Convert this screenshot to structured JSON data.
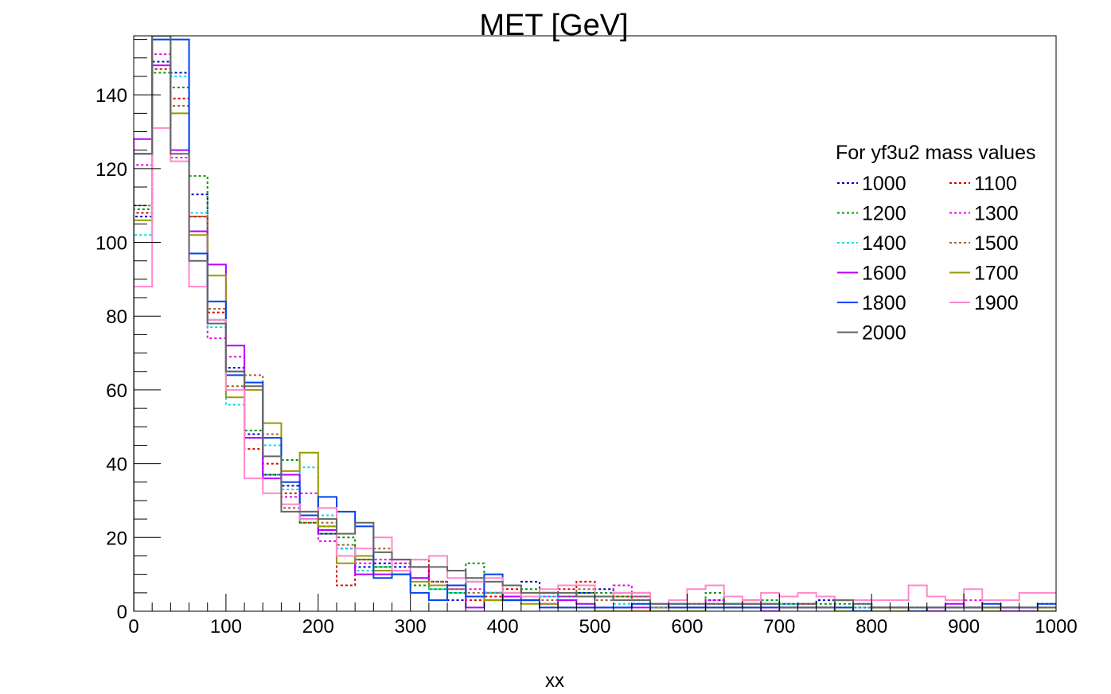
{
  "chart_data": {
    "type": "step-histogram",
    "title": "MET [GeV]",
    "xlabel": "xx",
    "ylabel": "",
    "xlim": [
      0,
      1000
    ],
    "ylim": [
      0,
      156
    ],
    "bin_width": 20,
    "x_ticks": [
      "0",
      "100",
      "200",
      "300",
      "400",
      "500",
      "600",
      "700",
      "800",
      "900",
      "1000"
    ],
    "y_ticks": [
      "0",
      "20",
      "40",
      "60",
      "80",
      "100",
      "120",
      "140"
    ],
    "grid": false,
    "legend": {
      "title": "For yf3u2 mass values",
      "placement": "top-right",
      "columns": 2
    },
    "series": [
      {
        "name": "1000",
        "color": "#0000cc",
        "dash": "dotted",
        "values": [
          107,
          149,
          146,
          113,
          79,
          66,
          48,
          37,
          34,
          25,
          21,
          15,
          12,
          13,
          12,
          12,
          8,
          3,
          8,
          5,
          3,
          8,
          5,
          4,
          5,
          6,
          5,
          5,
          1,
          2,
          1,
          3,
          2,
          1,
          2,
          2,
          2,
          3,
          3,
          2,
          1,
          1,
          1,
          1,
          1,
          1,
          1,
          1,
          1,
          2
        ]
      },
      {
        "name": "1100",
        "color": "#dd0000",
        "dash": "dotted",
        "values": [
          108,
          147,
          139,
          107,
          81,
          65,
          44,
          40,
          32,
          24,
          23,
          7,
          14,
          12,
          13,
          14,
          8,
          7,
          3,
          4,
          6,
          4,
          5,
          6,
          8,
          4,
          4,
          3,
          1,
          2,
          2,
          2,
          2,
          1,
          2,
          1,
          1,
          1,
          1,
          1,
          1,
          1,
          1,
          1,
          1,
          1,
          1,
          1,
          1,
          1
        ]
      },
      {
        "name": "1200",
        "color": "#009900",
        "dash": "dotted",
        "values": [
          109,
          146,
          142,
          118,
          79,
          65,
          49,
          37,
          41,
          24,
          21,
          20,
          14,
          12,
          11,
          7,
          6,
          5,
          13,
          5,
          5,
          6,
          5,
          4,
          5,
          5,
          4,
          4,
          1,
          1,
          1,
          5,
          2,
          3,
          3,
          2,
          2,
          2,
          2,
          1,
          1,
          1,
          1,
          1,
          1,
          1,
          1,
          1,
          1,
          1
        ]
      },
      {
        "name": "1300",
        "color": "#ee00ee",
        "dash": "dotted",
        "values": [
          121,
          151,
          123,
          103,
          74,
          69,
          47,
          36,
          31,
          32,
          19,
          17,
          13,
          14,
          13,
          12,
          7,
          6,
          6,
          5,
          4,
          4,
          4,
          4,
          4,
          4,
          7,
          4,
          1,
          1,
          1,
          3,
          1,
          2,
          1,
          1,
          2,
          1,
          1,
          1,
          1,
          1,
          1,
          1,
          1,
          3,
          1,
          1,
          1,
          1
        ]
      },
      {
        "name": "1400",
        "color": "#00dddd",
        "dash": "dotted",
        "values": [
          102,
          155,
          145,
          108,
          77,
          56,
          47,
          45,
          33,
          39,
          26,
          17,
          11,
          12,
          10,
          9,
          6,
          5,
          9,
          5,
          5,
          3,
          4,
          3,
          2,
          0,
          2,
          2,
          1,
          2,
          1,
          2,
          2,
          2,
          2,
          2,
          1,
          1,
          1,
          1,
          1,
          1,
          1,
          1,
          1,
          1,
          1,
          1,
          1,
          1
        ]
      },
      {
        "name": "1500",
        "color": "#996633",
        "dash": "dotted",
        "values": [
          110,
          148,
          137,
          107,
          82,
          61,
          64,
          48,
          28,
          27,
          24,
          18,
          14,
          17,
          11,
          9,
          8,
          6,
          5,
          5,
          4,
          4,
          3,
          3,
          6,
          3,
          5,
          4,
          1,
          1,
          1,
          2,
          1,
          2,
          1,
          1,
          2,
          1,
          1,
          3,
          1,
          1,
          1,
          1,
          1,
          1,
          1,
          1,
          1,
          1
        ]
      },
      {
        "name": "1600",
        "color": "#bb00ff",
        "dash": "solid",
        "values": [
          128,
          148,
          125,
          103,
          94,
          72,
          47,
          36,
          37,
          25,
          22,
          15,
          10,
          10,
          14,
          9,
          7,
          7,
          1,
          3,
          4,
          3,
          2,
          3,
          2,
          1,
          1,
          1,
          0,
          0,
          0,
          1,
          1,
          3,
          0,
          1,
          1,
          1,
          0,
          0,
          0,
          0,
          0,
          0,
          2,
          1,
          0,
          0,
          0,
          0
        ]
      },
      {
        "name": "1700",
        "color": "#999900",
        "dash": "solid",
        "values": [
          106,
          156,
          135,
          102,
          91,
          58,
          60,
          51,
          38,
          43,
          23,
          13,
          15,
          11,
          10,
          8,
          7,
          7,
          4,
          3,
          3,
          2,
          2,
          1,
          1,
          0,
          0,
          0,
          0,
          0,
          0,
          1,
          1,
          2,
          1,
          1,
          1,
          1,
          0,
          0,
          0,
          0,
          0,
          1,
          1,
          1,
          0,
          1,
          1,
          0
        ]
      },
      {
        "name": "1800",
        "color": "#0044ee",
        "dash": "solid",
        "values": [
          124,
          155,
          155,
          97,
          84,
          64,
          62,
          47,
          35,
          26,
          31,
          27,
          23,
          9,
          10,
          5,
          3,
          7,
          4,
          10,
          3,
          3,
          1,
          1,
          1,
          1,
          1,
          2,
          2,
          1,
          1,
          1,
          1,
          1,
          1,
          1,
          1,
          1,
          1,
          0,
          1,
          1,
          0,
          1,
          1,
          1,
          2,
          1,
          1,
          2
        ]
      },
      {
        "name": "1900",
        "color": "#ff88cc",
        "dash": "solid",
        "values": [
          88,
          131,
          122,
          88,
          79,
          60,
          36,
          32,
          29,
          25,
          28,
          15,
          17,
          20,
          11,
          14,
          15,
          9,
          8,
          9,
          5,
          4,
          6,
          7,
          7,
          4,
          5,
          5,
          2,
          3,
          6,
          7,
          4,
          3,
          5,
          4,
          5,
          4,
          3,
          3,
          3,
          3,
          7,
          4,
          3,
          6,
          3,
          3,
          5,
          5
        ]
      },
      {
        "name": "2000",
        "color": "#666666",
        "dash": "solid",
        "values": [
          124,
          156,
          124,
          95,
          78,
          65,
          61,
          42,
          27,
          27,
          25,
          21,
          24,
          16,
          14,
          12,
          12,
          11,
          9,
          8,
          7,
          5,
          5,
          5,
          4,
          4,
          3,
          3,
          2,
          2,
          2,
          2,
          2,
          2,
          2,
          1,
          1,
          1,
          3,
          2,
          1,
          1,
          1,
          1,
          1,
          1,
          1,
          1,
          1,
          1
        ]
      }
    ]
  }
}
